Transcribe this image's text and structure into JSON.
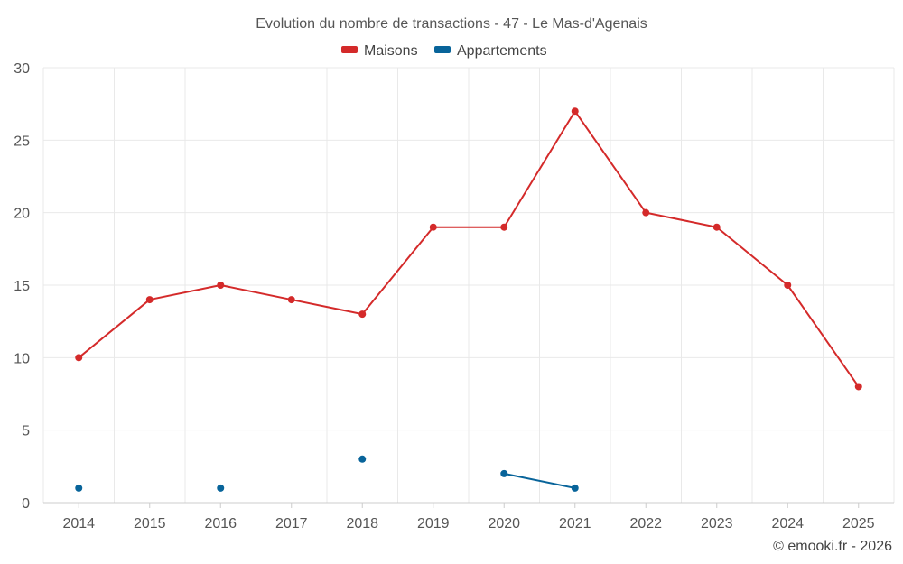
{
  "chart_data": {
    "type": "line",
    "title": "Evolution du nombre de transactions - 47 - Le Mas-d'Agenais",
    "categories": [
      "2014",
      "2015",
      "2016",
      "2017",
      "2018",
      "2019",
      "2020",
      "2021",
      "2022",
      "2023",
      "2024",
      "2025"
    ],
    "series": [
      {
        "name": "Maisons",
        "color": "#d42a2a",
        "values": [
          10,
          14,
          15,
          14,
          13,
          19,
          19,
          27,
          20,
          19,
          15,
          8
        ]
      },
      {
        "name": "Appartements",
        "color": "#08649a",
        "values": [
          1,
          null,
          1,
          null,
          3,
          null,
          2,
          1,
          null,
          null,
          null,
          null
        ]
      }
    ],
    "yticks": [
      "0",
      "5",
      "10",
      "15",
      "20",
      "25",
      "30"
    ],
    "ylim": [
      0,
      30
    ],
    "grid": true,
    "legend_position": "top-center",
    "xlabel": "",
    "ylabel": ""
  },
  "credit": "© emooki.fr - 2026"
}
